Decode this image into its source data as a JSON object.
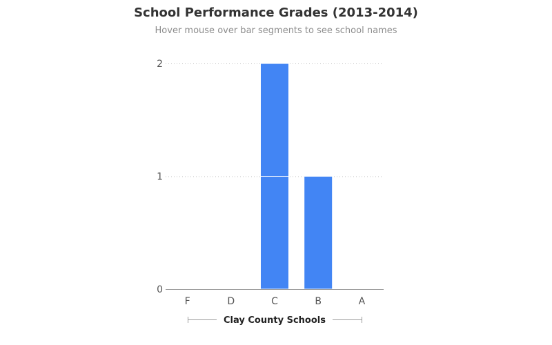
{
  "title": "School Performance Grades (2013-2014)",
  "subtitle": "Hover mouse over bar segments to see school names",
  "colors": {
    "bar": "#4285f4",
    "gridline": "#bdbdbd",
    "axis": "#999999"
  },
  "chart_data": {
    "type": "bar",
    "stacked": true,
    "categories": [
      "F",
      "D",
      "C",
      "B",
      "A"
    ],
    "segments": [
      [],
      [],
      [
        1,
        1
      ],
      [
        1
      ],
      []
    ],
    "values": [
      0,
      0,
      2,
      1,
      0
    ],
    "yticks": [
      0,
      1,
      2
    ],
    "ylim": [
      0,
      2
    ],
    "xlabel": "Clay County Schools",
    "ylabel": "",
    "grid": true
  }
}
